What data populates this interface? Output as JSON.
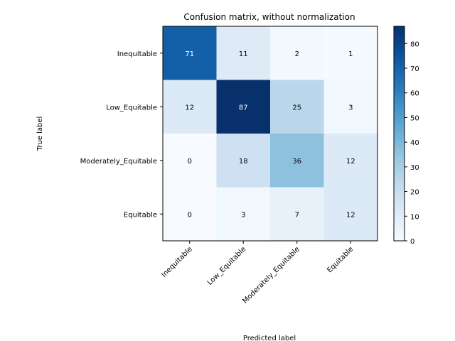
{
  "chart_data": {
    "type": "heatmap",
    "title": "Confusion matrix, without normalization",
    "xlabel": "Predicted label",
    "ylabel": "True label",
    "x_categories": [
      "Inequitable",
      "Low_Equitable",
      "Moderately_Equitable",
      "Equitable"
    ],
    "y_categories": [
      "Inequitable",
      "Low_Equitable",
      "Moderately_Equitable",
      "Equitable"
    ],
    "values": [
      [
        71,
        11,
        2,
        1
      ],
      [
        12,
        87,
        25,
        3
      ],
      [
        0,
        18,
        36,
        12
      ],
      [
        0,
        3,
        7,
        12
      ]
    ],
    "colormap": "Blues",
    "color_range": [
      0,
      87
    ],
    "colorbar_ticks": [
      0,
      10,
      20,
      30,
      40,
      50,
      60,
      70,
      80
    ],
    "x_tick_rotation_deg": 45,
    "grid": false
  }
}
